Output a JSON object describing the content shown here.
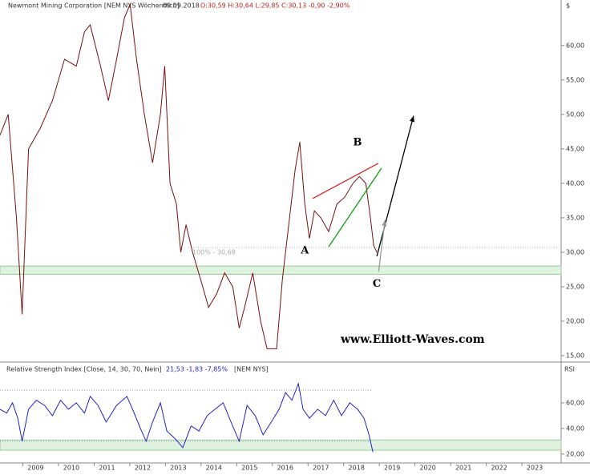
{
  "chart_data": [
    {
      "type": "line",
      "title": "Newmont Mining Corporation [NEM NYS Wöchentlich]",
      "date": "09.09.2018",
      "ohlc": "O:30,59 H:30,64 L:29,85 C:30,13 -0,90 -2,90%",
      "unit": "$",
      "watermark": "www.Elliott-Waves.com",
      "x": [
        2008.0,
        2008.23,
        2008.46,
        2008.62,
        2008.8,
        2009.13,
        2009.47,
        2009.81,
        2010.14,
        2010.37,
        2010.53,
        2010.82,
        2011.04,
        2011.27,
        2011.49,
        2011.65,
        2011.83,
        2012.05,
        2012.28,
        2012.5,
        2012.62,
        2012.77,
        2012.95,
        2013.07,
        2013.22,
        2013.4,
        2013.63,
        2013.85,
        2014.08,
        2014.3,
        2014.53,
        2014.71,
        2014.86,
        2015.09,
        2015.31,
        2015.49,
        2015.76,
        2015.92,
        2016.1,
        2016.28,
        2016.41,
        2016.55,
        2016.68,
        2016.82,
        2017.0,
        2017.22,
        2017.45,
        2017.67,
        2017.9,
        2018.08,
        2018.26,
        2018.39,
        2018.48,
        2018.57
      ],
      "series": [
        {
          "name": "NEM",
          "color": "#7a1010",
          "values": [
            47,
            50,
            35,
            21,
            45,
            48,
            52,
            58,
            57,
            62,
            63,
            57,
            52,
            58,
            64,
            66,
            58,
            50,
            43,
            50,
            57,
            40,
            37,
            30,
            34,
            30,
            26,
            22,
            24,
            27,
            25,
            19,
            22,
            27,
            20,
            16,
            16,
            26,
            34,
            42,
            46,
            37,
            32,
            36,
            35,
            33,
            37,
            38,
            40,
            41,
            40,
            35,
            31,
            30
          ]
        }
      ],
      "xlim": [
        2008.0,
        2023.74
      ],
      "xticks": [
        2009,
        2010,
        2011,
        2012,
        2013,
        2014,
        2015,
        2016,
        2017,
        2018,
        2019,
        2020,
        2021,
        2022,
        2023
      ],
      "ylim": [
        14.07,
        66.6
      ],
      "yticks": [
        {
          "value": 15,
          "label": "15,00"
        },
        {
          "value": 20,
          "label": "20,00"
        },
        {
          "value": 25,
          "label": "25,00"
        },
        {
          "value": 30,
          "label": "30,00"
        },
        {
          "value": 35,
          "label": "35,00"
        },
        {
          "value": 40,
          "label": "40,00"
        },
        {
          "value": 45,
          "label": "45,00"
        },
        {
          "value": 50,
          "label": "50,00"
        },
        {
          "value": 55,
          "label": "55,00"
        },
        {
          "value": 60,
          "label": "60,00"
        }
      ],
      "level": {
        "value": 30.68,
        "label": "100% - 30,68"
      },
      "zone": [
        26.8,
        28
      ],
      "trendlines": [
        {
          "color": "#e02020",
          "x": [
            2016.77,
            2018.61
          ],
          "y": [
            37.8,
            42.9
          ]
        },
        {
          "color": "#10a010",
          "x": [
            2017.22,
            2018.7
          ],
          "y": [
            30.8,
            42.2
          ]
        }
      ],
      "arrows": [
        {
          "color": "#000000",
          "x": [
            2018.57,
            2019.6
          ],
          "y": [
            29.4,
            49.8
          ]
        },
        {
          "color": "#999999",
          "x": [
            2018.62,
            2018.8
          ],
          "y": [
            27.2,
            34.7
          ]
        }
      ],
      "annotations": [
        {
          "text": "A",
          "x": 2016.55,
          "y": 30.2
        },
        {
          "text": "B",
          "x": 2018.03,
          "y": 45.9
        },
        {
          "text": "C",
          "x": 2018.57,
          "y": 25.4
        }
      ]
    },
    {
      "type": "line",
      "title": "Relative Strength Index [Close, 14, 30, 70, Nein]",
      "readout": "21,53 -1,83 -7,85%",
      "symbol": "[NEM NYS]",
      "ylabel": "RSI",
      "x": [
        2008.0,
        2008.19,
        2008.35,
        2008.5,
        2008.62,
        2008.8,
        2009.02,
        2009.25,
        2009.47,
        2009.7,
        2009.92,
        2010.14,
        2010.37,
        2010.53,
        2010.75,
        2010.98,
        2011.27,
        2011.56,
        2011.72,
        2011.94,
        2012.1,
        2012.28,
        2012.5,
        2012.68,
        2012.91,
        2013.13,
        2013.36,
        2013.58,
        2013.81,
        2014.03,
        2014.26,
        2014.48,
        2014.71,
        2014.93,
        2015.16,
        2015.38,
        2015.61,
        2015.83,
        2016.01,
        2016.19,
        2016.37,
        2016.5,
        2016.68,
        2016.91,
        2017.13,
        2017.36,
        2017.58,
        2017.81,
        2018.03,
        2018.21,
        2018.35,
        2018.46
      ],
      "series": [
        {
          "name": "RSI",
          "color": "#2222cc",
          "values": [
            55,
            52,
            60,
            48,
            30,
            55,
            62,
            58,
            50,
            62,
            55,
            60,
            52,
            65,
            58,
            45,
            58,
            65,
            55,
            40,
            30,
            45,
            60,
            38,
            32,
            25,
            42,
            38,
            50,
            55,
            60,
            45,
            30,
            58,
            50,
            35,
            45,
            55,
            68,
            62,
            75,
            55,
            48,
            55,
            50,
            62,
            50,
            60,
            55,
            48,
            35,
            21.53
          ]
        }
      ],
      "xlim": [
        2008.0,
        2023.74
      ],
      "ylim": [
        13,
        90
      ],
      "yticks": [
        {
          "value": 20,
          "label": "20,00"
        },
        {
          "value": 40,
          "label": "40,00"
        },
        {
          "value": 60,
          "label": "60,00"
        }
      ],
      "bounds": [
        30,
        70
      ],
      "zone": [
        23,
        31
      ]
    }
  ]
}
